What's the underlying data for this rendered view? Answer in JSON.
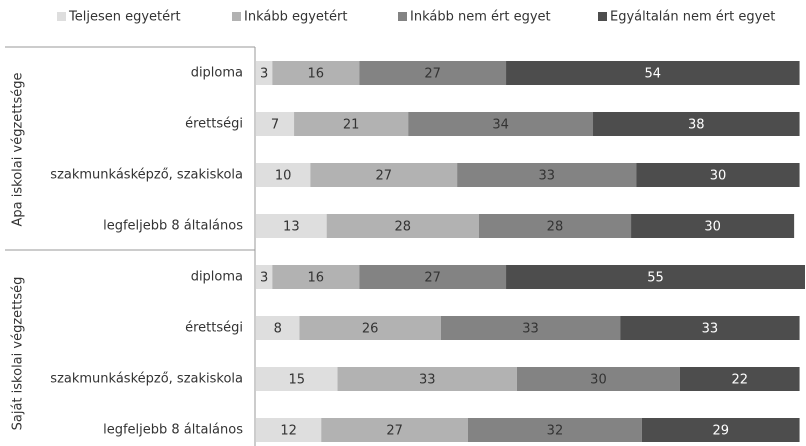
{
  "chart_data": {
    "type": "stacked-bar",
    "groups": [
      {
        "name": "Apa iskolai végzettsége",
        "categories": [
          "diploma",
          "érettségi",
          "szakmunkásképző, szakiskola",
          "legfeljebb 8 általános"
        ]
      },
      {
        "name": "Saját iskolai végzettség",
        "categories": [
          "diploma",
          "érettségi",
          "szakmunkásképző, szakiskola",
          "legfeljebb 8 általános"
        ]
      }
    ],
    "series": [
      {
        "name": "Teljesen egyetért",
        "color": "#dedede",
        "values": [
          3,
          7,
          10,
          13,
          3,
          8,
          15,
          12
        ]
      },
      {
        "name": "Inkább egyetért",
        "color": "#b2b2b2",
        "values": [
          16,
          21,
          27,
          28,
          16,
          26,
          33,
          27
        ]
      },
      {
        "name": "Inkább nem ért egyet",
        "color": "#838383",
        "values": [
          27,
          34,
          33,
          28,
          27,
          33,
          30,
          32
        ]
      },
      {
        "name": "Egyáltalán nem ért egyet",
        "color": "#4d4d4d",
        "values": [
          54,
          38,
          30,
          30,
          55,
          33,
          22,
          29
        ]
      }
    ]
  }
}
